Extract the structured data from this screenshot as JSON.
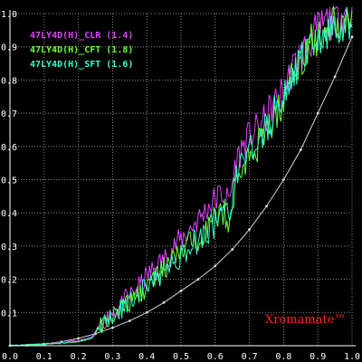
{
  "colors": {
    "background": "#000000",
    "grid": "#8a8a8a",
    "axis": "#ffffff",
    "reference": "#d8d8d8",
    "clr": "#e040ff",
    "cft": "#66ff33",
    "sft": "#33ffcc",
    "brand": "#ff2020"
  },
  "brand": "Xromamate™",
  "chart_data": {
    "type": "line",
    "xlim": [
      0.0,
      1.0
    ],
    "ylim": [
      0.0,
      1.0
    ],
    "grid": true,
    "legend_position": "top-left",
    "x_ticks": [
      "0.0",
      "0.1",
      "0.2",
      "0.3",
      "0.4",
      "0.5",
      "0.6",
      "0.7",
      "0.8",
      "0.9",
      "1.0"
    ],
    "y_ticks": [
      "0.0",
      "0.1",
      "0.2",
      "0.3",
      "0.4",
      "0.5",
      "0.6",
      "0.7",
      "0.8",
      "0.9",
      "1.0"
    ],
    "reference_curve": {
      "x": [
        0.0,
        0.05,
        0.1,
        0.15,
        0.2,
        0.25,
        0.3,
        0.35,
        0.4,
        0.45,
        0.5,
        0.55,
        0.6,
        0.65,
        0.7,
        0.75,
        0.8,
        0.85,
        0.9,
        0.95,
        1.0
      ],
      "y": [
        0.0,
        0.001,
        0.004,
        0.012,
        0.022,
        0.036,
        0.054,
        0.075,
        0.1,
        0.13,
        0.165,
        0.2,
        0.24,
        0.29,
        0.35,
        0.42,
        0.5,
        0.59,
        0.7,
        0.81,
        0.93
      ]
    },
    "series": [
      {
        "name": "47LY4D(H)_CLR (1.4)",
        "color": "#e040ff",
        "x": [
          0.0,
          0.1,
          0.2,
          0.22,
          0.24,
          0.26,
          0.28,
          0.3,
          0.32,
          0.34,
          0.36,
          0.38,
          0.4,
          0.42,
          0.44,
          0.46,
          0.48,
          0.5,
          0.52,
          0.54,
          0.56,
          0.58,
          0.6,
          0.62,
          0.64,
          0.66,
          0.68,
          0.7,
          0.72,
          0.74,
          0.76,
          0.78,
          0.8,
          0.82,
          0.84,
          0.86,
          0.88,
          0.9,
          0.92,
          0.94,
          0.96,
          0.98,
          1.0
        ],
        "y": [
          0.0,
          0.006,
          0.015,
          0.02,
          0.026,
          0.06,
          0.08,
          0.1,
          0.115,
          0.14,
          0.16,
          0.18,
          0.21,
          0.23,
          0.25,
          0.27,
          0.3,
          0.32,
          0.34,
          0.37,
          0.39,
          0.42,
          0.44,
          0.46,
          0.43,
          0.55,
          0.6,
          0.63,
          0.65,
          0.67,
          0.71,
          0.74,
          0.77,
          0.82,
          0.86,
          0.89,
          0.92,
          0.95,
          0.97,
          0.98,
          1.0,
          1.0,
          1.0
        ]
      },
      {
        "name": "47LY4D(H)_CFT (1.8)",
        "color": "#66ff33",
        "x": [
          0.0,
          0.1,
          0.2,
          0.22,
          0.24,
          0.26,
          0.28,
          0.3,
          0.32,
          0.34,
          0.36,
          0.38,
          0.4,
          0.42,
          0.44,
          0.46,
          0.48,
          0.5,
          0.52,
          0.54,
          0.56,
          0.58,
          0.6,
          0.62,
          0.64,
          0.66,
          0.68,
          0.7,
          0.72,
          0.74,
          0.76,
          0.78,
          0.8,
          0.82,
          0.84,
          0.86,
          0.88,
          0.9,
          0.92,
          0.94,
          0.96,
          0.98,
          1.0
        ],
        "y": [
          0.0,
          0.005,
          0.012,
          0.018,
          0.022,
          0.055,
          0.07,
          0.09,
          0.1,
          0.12,
          0.14,
          0.16,
          0.18,
          0.2,
          0.22,
          0.24,
          0.26,
          0.28,
          0.3,
          0.32,
          0.34,
          0.36,
          0.38,
          0.41,
          0.38,
          0.48,
          0.53,
          0.57,
          0.6,
          0.62,
          0.66,
          0.7,
          0.74,
          0.8,
          0.85,
          0.88,
          0.91,
          0.93,
          0.95,
          0.97,
          0.98,
          0.99,
          1.0
        ]
      },
      {
        "name": "47LY4D(H)_SFT (1.6)",
        "color": "#33ffcc",
        "x": [
          0.0,
          0.1,
          0.2,
          0.22,
          0.24,
          0.26,
          0.28,
          0.3,
          0.32,
          0.34,
          0.36,
          0.38,
          0.4,
          0.42,
          0.44,
          0.46,
          0.48,
          0.5,
          0.52,
          0.54,
          0.56,
          0.58,
          0.6,
          0.62,
          0.64,
          0.66,
          0.68,
          0.7,
          0.72,
          0.74,
          0.76,
          0.78,
          0.8,
          0.82,
          0.84,
          0.86,
          0.88,
          0.9,
          0.92,
          0.94,
          0.96,
          0.98,
          1.0
        ],
        "y": [
          0.0,
          0.005,
          0.012,
          0.018,
          0.022,
          0.06,
          0.075,
          0.09,
          0.105,
          0.12,
          0.14,
          0.16,
          0.18,
          0.2,
          0.21,
          0.23,
          0.25,
          0.27,
          0.29,
          0.31,
          0.33,
          0.35,
          0.37,
          0.39,
          0.4,
          0.5,
          0.55,
          0.58,
          0.61,
          0.64,
          0.68,
          0.72,
          0.75,
          0.8,
          0.84,
          0.87,
          0.89,
          0.91,
          0.93,
          0.95,
          0.96,
          0.97,
          0.98
        ]
      }
    ]
  }
}
